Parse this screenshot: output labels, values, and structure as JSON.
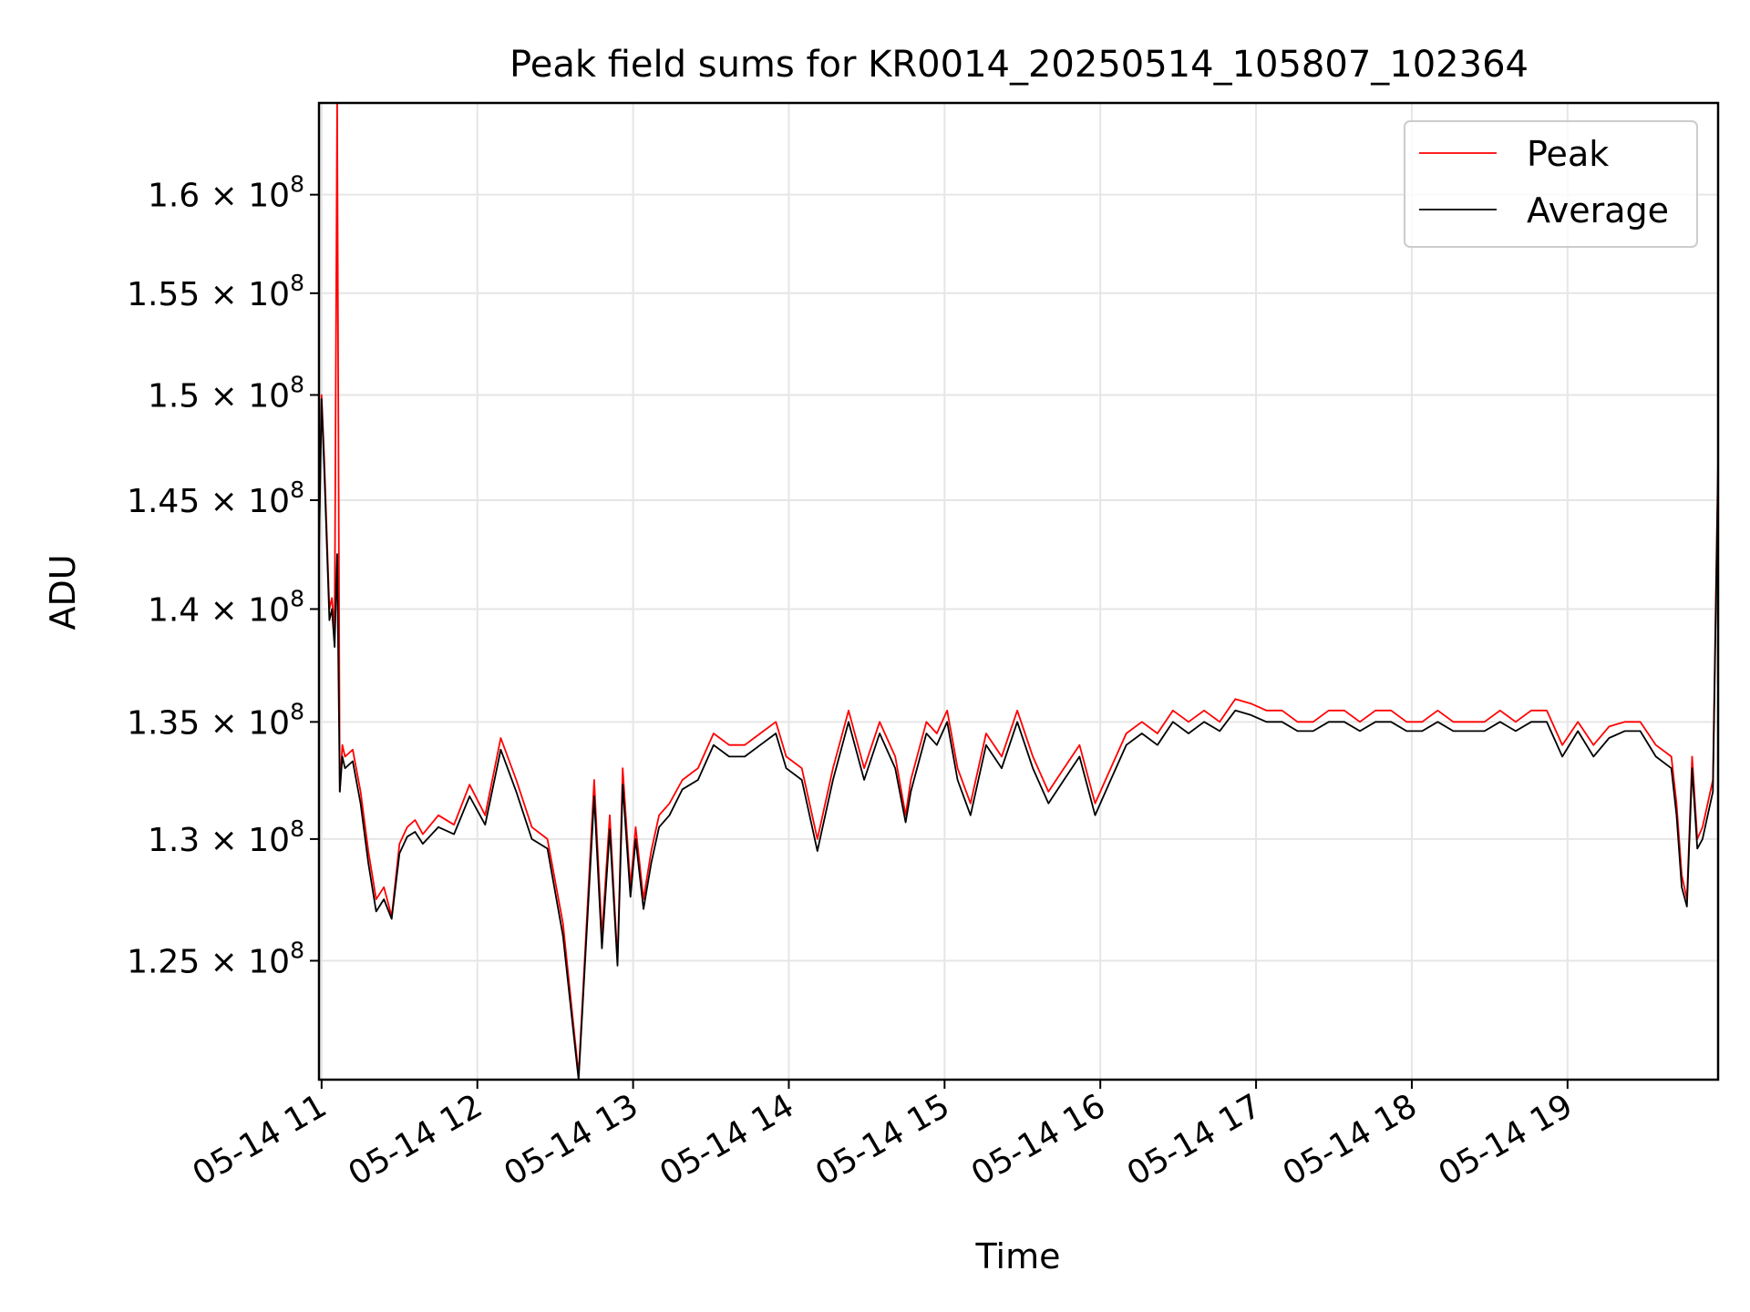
{
  "chart_data": {
    "type": "line",
    "title": "Peak field sums for KR0014_20250514_105807_102364",
    "xlabel": "Time",
    "ylabel": "ADU",
    "y_scale": "log",
    "xlim": [
      "05-14 10:59",
      "05-14 19:58"
    ],
    "ylim": [
      120300000,
      164800000
    ],
    "grid": true,
    "legend_position": "upper right",
    "x_ticks": [
      {
        "value": "05-14 11:00",
        "label": "05-14 11"
      },
      {
        "value": "05-14 12:00",
        "label": "05-14 12"
      },
      {
        "value": "05-14 13:00",
        "label": "05-14 13"
      },
      {
        "value": "05-14 14:00",
        "label": "05-14 14"
      },
      {
        "value": "05-14 15:00",
        "label": "05-14 15"
      },
      {
        "value": "05-14 16:00",
        "label": "05-14 16"
      },
      {
        "value": "05-14 17:00",
        "label": "05-14 17"
      },
      {
        "value": "05-14 18:00",
        "label": "05-14 18"
      },
      {
        "value": "05-14 19:00",
        "label": "05-14 19"
      }
    ],
    "y_ticks": [
      {
        "value": 125000000,
        "mantissa": "1.25",
        "base": "10",
        "exp": "8"
      },
      {
        "value": 130000000,
        "mantissa": "1.3",
        "base": "10",
        "exp": "8"
      },
      {
        "value": 135000000,
        "mantissa": "1.35",
        "base": "10",
        "exp": "8"
      },
      {
        "value": 140000000,
        "mantissa": "1.4",
        "base": "10",
        "exp": "8"
      },
      {
        "value": 145000000,
        "mantissa": "1.45",
        "base": "10",
        "exp": "8"
      },
      {
        "value": 150000000,
        "mantissa": "1.5",
        "base": "10",
        "exp": "8"
      },
      {
        "value": 155000000,
        "mantissa": "1.55",
        "base": "10",
        "exp": "8"
      },
      {
        "value": 160000000,
        "mantissa": "1.6",
        "base": "10",
        "exp": "8"
      }
    ],
    "series": [
      {
        "name": "Peak",
        "color": "#ff0000",
        "x": [
          "05-14 10:59",
          "05-14 11:00",
          "05-14 11:01",
          "05-14 11:03",
          "05-14 11:04",
          "05-14 11:05",
          "05-14 11:06",
          "05-14 11:07",
          "05-14 11:08",
          "05-14 11:09",
          "05-14 11:12",
          "05-14 11:15",
          "05-14 11:18",
          "05-14 11:21",
          "05-14 11:24",
          "05-14 11:27",
          "05-14 11:30",
          "05-14 11:33",
          "05-14 11:36",
          "05-14 11:39",
          "05-14 11:45",
          "05-14 11:51",
          "05-14 11:57",
          "05-14 12:03",
          "05-14 12:09",
          "05-14 12:15",
          "05-14 12:21",
          "05-14 12:27",
          "05-14 12:33",
          "05-14 12:39",
          "05-14 12:45",
          "05-14 12:48",
          "05-14 12:51",
          "05-14 12:54",
          "05-14 12:56",
          "05-14 12:59",
          "05-14 13:01",
          "05-14 13:04",
          "05-14 13:07",
          "05-14 13:10",
          "05-14 13:14",
          "05-14 13:19",
          "05-14 13:25",
          "05-14 13:31",
          "05-14 13:37",
          "05-14 13:43",
          "05-14 13:49",
          "05-14 13:55",
          "05-14 13:59",
          "05-14 14:05",
          "05-14 14:11",
          "05-14 14:17",
          "05-14 14:23",
          "05-14 14:29",
          "05-14 14:35",
          "05-14 14:41",
          "05-14 14:45",
          "05-14 14:47",
          "05-14 14:53",
          "05-14 14:57",
          "05-14 15:01",
          "05-14 15:05",
          "05-14 15:10",
          "05-14 15:16",
          "05-14 15:22",
          "05-14 15:28",
          "05-14 15:34",
          "05-14 15:40",
          "05-14 15:46",
          "05-14 15:52",
          "05-14 15:58",
          "05-14 16:04",
          "05-14 16:10",
          "05-14 16:16",
          "05-14 16:22",
          "05-14 16:28",
          "05-14 16:34",
          "05-14 16:40",
          "05-14 16:46",
          "05-14 16:52",
          "05-14 16:58",
          "05-14 17:04",
          "05-14 17:10",
          "05-14 17:16",
          "05-14 17:22",
          "05-14 17:28",
          "05-14 17:34",
          "05-14 17:40",
          "05-14 17:46",
          "05-14 17:52",
          "05-14 17:58",
          "05-14 18:04",
          "05-14 18:10",
          "05-14 18:16",
          "05-14 18:22",
          "05-14 18:28",
          "05-14 18:34",
          "05-14 18:40",
          "05-14 18:46",
          "05-14 18:52",
          "05-14 18:58",
          "05-14 19:04",
          "05-14 19:10",
          "05-14 19:16",
          "05-14 19:22",
          "05-14 19:28",
          "05-14 19:34",
          "05-14 19:40",
          "05-14 19:42",
          "05-14 19:44",
          "05-14 19:46",
          "05-14 19:48",
          "05-14 19:50",
          "05-14 19:52",
          "05-14 19:54",
          "05-14 19:56",
          "05-14 19:58"
        ],
        "y": [
          143000000,
          150000000,
          147000000,
          140000000,
          140500000,
          139000000,
          165000000,
          132000000,
          134000000,
          133500000,
          133800000,
          132000000,
          129500000,
          127500000,
          128000000,
          126800000,
          129800000,
          130500000,
          130800000,
          130200000,
          131000000,
          130600000,
          132300000,
          131000000,
          134300000,
          132500000,
          130500000,
          130000000,
          126500000,
          120500000,
          132500000,
          126000000,
          131000000,
          125000000,
          133000000,
          128000000,
          130500000,
          127500000,
          129500000,
          131000000,
          131500000,
          132500000,
          133000000,
          134500000,
          134000000,
          134000000,
          134500000,
          135000000,
          133500000,
          133000000,
          130000000,
          133000000,
          135500000,
          133000000,
          135000000,
          133500000,
          131000000,
          132500000,
          135000000,
          134500000,
          135500000,
          133000000,
          131500000,
          134500000,
          133500000,
          135500000,
          133500000,
          132000000,
          133000000,
          134000000,
          131500000,
          133000000,
          134500000,
          135000000,
          134500000,
          135500000,
          135000000,
          135500000,
          135000000,
          136000000,
          135800000,
          135500000,
          135500000,
          135000000,
          135000000,
          135500000,
          135500000,
          135000000,
          135500000,
          135500000,
          135000000,
          135000000,
          135500000,
          135000000,
          135000000,
          135000000,
          135500000,
          135000000,
          135500000,
          135500000,
          134000000,
          135000000,
          134000000,
          134800000,
          135000000,
          135000000,
          134000000,
          133500000,
          131500000,
          128500000,
          127500000,
          133500000,
          130000000,
          130500000,
          131500000,
          132500000,
          147000000
        ]
      },
      {
        "name": "Average",
        "color": "#000000",
        "x": [
          "05-14 10:59",
          "05-14 11:00",
          "05-14 11:01",
          "05-14 11:03",
          "05-14 11:04",
          "05-14 11:05",
          "05-14 11:06",
          "05-14 11:07",
          "05-14 11:08",
          "05-14 11:09",
          "05-14 11:12",
          "05-14 11:15",
          "05-14 11:18",
          "05-14 11:21",
          "05-14 11:24",
          "05-14 11:27",
          "05-14 11:30",
          "05-14 11:33",
          "05-14 11:36",
          "05-14 11:39",
          "05-14 11:45",
          "05-14 11:51",
          "05-14 11:57",
          "05-14 12:03",
          "05-14 12:09",
          "05-14 12:15",
          "05-14 12:21",
          "05-14 12:27",
          "05-14 12:33",
          "05-14 12:39",
          "05-14 12:45",
          "05-14 12:48",
          "05-14 12:51",
          "05-14 12:54",
          "05-14 12:56",
          "05-14 12:59",
          "05-14 13:01",
          "05-14 13:04",
          "05-14 13:07",
          "05-14 13:10",
          "05-14 13:14",
          "05-14 13:19",
          "05-14 13:25",
          "05-14 13:31",
          "05-14 13:37",
          "05-14 13:43",
          "05-14 13:49",
          "05-14 13:55",
          "05-14 13:59",
          "05-14 14:05",
          "05-14 14:11",
          "05-14 14:17",
          "05-14 14:23",
          "05-14 14:29",
          "05-14 14:35",
          "05-14 14:41",
          "05-14 14:45",
          "05-14 14:47",
          "05-14 14:53",
          "05-14 14:57",
          "05-14 15:01",
          "05-14 15:05",
          "05-14 15:10",
          "05-14 15:16",
          "05-14 15:22",
          "05-14 15:28",
          "05-14 15:34",
          "05-14 15:40",
          "05-14 15:46",
          "05-14 15:52",
          "05-14 15:58",
          "05-14 16:04",
          "05-14 16:10",
          "05-14 16:16",
          "05-14 16:22",
          "05-14 16:28",
          "05-14 16:34",
          "05-14 16:40",
          "05-14 16:46",
          "05-14 16:52",
          "05-14 16:58",
          "05-14 17:04",
          "05-14 17:10",
          "05-14 17:16",
          "05-14 17:22",
          "05-14 17:28",
          "05-14 17:34",
          "05-14 17:40",
          "05-14 17:46",
          "05-14 17:52",
          "05-14 17:58",
          "05-14 18:04",
          "05-14 18:10",
          "05-14 18:16",
          "05-14 18:22",
          "05-14 18:28",
          "05-14 18:34",
          "05-14 18:40",
          "05-14 18:46",
          "05-14 18:52",
          "05-14 18:58",
          "05-14 19:04",
          "05-14 19:10",
          "05-14 19:16",
          "05-14 19:22",
          "05-14 19:28",
          "05-14 19:34",
          "05-14 19:40",
          "05-14 19:42",
          "05-14 19:44",
          "05-14 19:46",
          "05-14 19:48",
          "05-14 19:50",
          "05-14 19:52",
          "05-14 19:54",
          "05-14 19:56",
          "05-14 19:58"
        ],
        "y": [
          142500000,
          149800000,
          146500000,
          139500000,
          140000000,
          138300000,
          142500000,
          132000000,
          133500000,
          133000000,
          133300000,
          131500000,
          129000000,
          127000000,
          127500000,
          126700000,
          129400000,
          130100000,
          130300000,
          129800000,
          130500000,
          130200000,
          131800000,
          130600000,
          133800000,
          132000000,
          130000000,
          129600000,
          126000000,
          120300000,
          131800000,
          125500000,
          130400000,
          124800000,
          132300000,
          127600000,
          130000000,
          127100000,
          129000000,
          130500000,
          131000000,
          132100000,
          132500000,
          134000000,
          133500000,
          133500000,
          134000000,
          134500000,
          133000000,
          132500000,
          129500000,
          132500000,
          135000000,
          132500000,
          134500000,
          133000000,
          130700000,
          132000000,
          134500000,
          134000000,
          135000000,
          132500000,
          131000000,
          134000000,
          133000000,
          135000000,
          133000000,
          131500000,
          132500000,
          133500000,
          131000000,
          132500000,
          134000000,
          134500000,
          134000000,
          135000000,
          134500000,
          135000000,
          134600000,
          135500000,
          135300000,
          135000000,
          135000000,
          134600000,
          134600000,
          135000000,
          135000000,
          134600000,
          135000000,
          135000000,
          134600000,
          134600000,
          135000000,
          134600000,
          134600000,
          134600000,
          135000000,
          134600000,
          135000000,
          135000000,
          133500000,
          134600000,
          133500000,
          134300000,
          134600000,
          134600000,
          133500000,
          133000000,
          131000000,
          128000000,
          127200000,
          133000000,
          129600000,
          130000000,
          131000000,
          132000000,
          146500000
        ]
      }
    ]
  }
}
